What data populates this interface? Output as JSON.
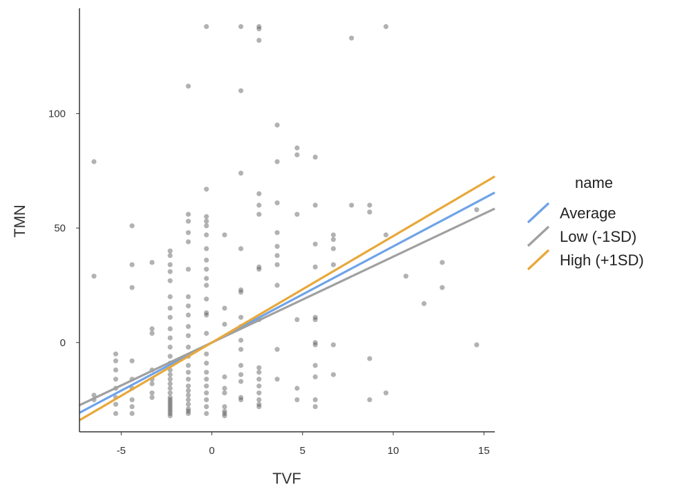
{
  "chart_data": {
    "type": "scatter",
    "title": "",
    "xlabel": "TVF",
    "ylabel": "TMN",
    "xlim": [
      -7.3,
      15.6
    ],
    "ylim": [
      -39,
      146
    ],
    "xticks": [
      -5,
      0,
      5,
      10,
      15
    ],
    "yticks": [
      0,
      50,
      100
    ],
    "xtick_labels": [
      "-5",
      "0",
      "5",
      "10",
      "15"
    ],
    "ytick_labels": [
      "0",
      "50",
      "100"
    ],
    "grid": false,
    "legend": {
      "title": "name",
      "position": "right",
      "entries": [
        {
          "label": "Average",
          "color": "#6FA3E8"
        },
        {
          "label": "Low (-1SD)",
          "color": "#A0A0A0"
        },
        {
          "label": "High (+1SD)",
          "color": "#E8A83A"
        }
      ]
    },
    "lines": [
      {
        "name": "Average",
        "color": "#6FA3E8",
        "intercept": 0,
        "slope": 4.2
      },
      {
        "name": "Low (-1SD)",
        "color": "#A0A0A0",
        "intercept": 0,
        "slope": 3.75
      },
      {
        "name": "High (+1SD)",
        "color": "#E8A83A",
        "intercept": 0,
        "slope": 4.65
      }
    ],
    "points": [
      [
        -6.5,
        79
      ],
      [
        -6.5,
        29
      ],
      [
        -6.5,
        -23
      ],
      [
        -6.5,
        -25
      ],
      [
        -5.3,
        -5
      ],
      [
        -5.3,
        -8
      ],
      [
        -5.3,
        -12
      ],
      [
        -5.3,
        -16
      ],
      [
        -5.3,
        -20
      ],
      [
        -5.3,
        -24
      ],
      [
        -5.3,
        -27
      ],
      [
        -5.3,
        -31
      ],
      [
        -4.4,
        51
      ],
      [
        -4.4,
        34
      ],
      [
        -4.4,
        24
      ],
      [
        -4.4,
        -8
      ],
      [
        -4.4,
        -16
      ],
      [
        -4.4,
        -20
      ],
      [
        -4.4,
        -25
      ],
      [
        -4.4,
        -28
      ],
      [
        -4.4,
        -31
      ],
      [
        -3.3,
        35
      ],
      [
        -3.3,
        6
      ],
      [
        -3.3,
        4
      ],
      [
        -3.3,
        -12
      ],
      [
        -3.3,
        -16
      ],
      [
        -3.3,
        -18
      ],
      [
        -3.3,
        -22
      ],
      [
        -3.3,
        -24
      ],
      [
        -2.3,
        40
      ],
      [
        -2.3,
        38
      ],
      [
        -2.3,
        34
      ],
      [
        -2.3,
        31
      ],
      [
        -2.3,
        27
      ],
      [
        -2.3,
        20
      ],
      [
        -2.3,
        15
      ],
      [
        -2.3,
        11
      ],
      [
        -2.3,
        6
      ],
      [
        -2.3,
        2
      ],
      [
        -2.3,
        -2
      ],
      [
        -2.3,
        -6
      ],
      [
        -2.3,
        -9
      ],
      [
        -2.3,
        -12
      ],
      [
        -2.3,
        -14
      ],
      [
        -2.3,
        -16
      ],
      [
        -2.3,
        -18
      ],
      [
        -2.3,
        -20
      ],
      [
        -2.3,
        -22
      ],
      [
        -2.3,
        -24
      ],
      [
        -2.3,
        -25
      ],
      [
        -2.3,
        -26
      ],
      [
        -2.3,
        -27
      ],
      [
        -2.3,
        -28
      ],
      [
        -2.3,
        -29
      ],
      [
        -2.3,
        -30
      ],
      [
        -2.3,
        -31
      ],
      [
        -2.3,
        -32
      ],
      [
        -1.3,
        112
      ],
      [
        -1.3,
        56
      ],
      [
        -1.3,
        53
      ],
      [
        -1.3,
        48
      ],
      [
        -1.3,
        44
      ],
      [
        -1.3,
        32
      ],
      [
        -1.3,
        20
      ],
      [
        -1.3,
        16
      ],
      [
        -1.3,
        12
      ],
      [
        -1.3,
        7
      ],
      [
        -1.3,
        3
      ],
      [
        -1.3,
        -2
      ],
      [
        -1.3,
        -6
      ],
      [
        -1.3,
        -10
      ],
      [
        -1.3,
        -13
      ],
      [
        -1.3,
        -16
      ],
      [
        -1.3,
        -19
      ],
      [
        -1.3,
        -21
      ],
      [
        -1.3,
        -23
      ],
      [
        -1.3,
        -25
      ],
      [
        -1.3,
        -27
      ],
      [
        -1.3,
        -29
      ],
      [
        -1.3,
        -30
      ],
      [
        -1.3,
        -31
      ],
      [
        -0.3,
        138
      ],
      [
        -0.3,
        67
      ],
      [
        -0.3,
        55
      ],
      [
        -0.3,
        53
      ],
      [
        -0.3,
        51
      ],
      [
        -0.3,
        47
      ],
      [
        -0.3,
        41
      ],
      [
        -0.3,
        36
      ],
      [
        -0.3,
        32
      ],
      [
        -0.3,
        28
      ],
      [
        -0.3,
        25
      ],
      [
        -0.3,
        19
      ],
      [
        -0.3,
        13
      ],
      [
        -0.3,
        12
      ],
      [
        -0.3,
        4
      ],
      [
        -0.3,
        -5
      ],
      [
        -0.3,
        -9
      ],
      [
        -0.3,
        -13
      ],
      [
        -0.3,
        -16
      ],
      [
        -0.3,
        -19
      ],
      [
        -0.3,
        -22
      ],
      [
        -0.3,
        -25
      ],
      [
        -0.3,
        -28
      ],
      [
        -0.3,
        -31
      ],
      [
        0.7,
        47
      ],
      [
        0.7,
        15
      ],
      [
        0.7,
        8
      ],
      [
        0.7,
        -15
      ],
      [
        0.7,
        -20
      ],
      [
        0.7,
        -22
      ],
      [
        0.7,
        -28
      ],
      [
        0.7,
        -30
      ],
      [
        0.7,
        -31
      ],
      [
        0.7,
        -32
      ],
      [
        1.6,
        138
      ],
      [
        1.6,
        110
      ],
      [
        1.6,
        74
      ],
      [
        1.6,
        41
      ],
      [
        1.6,
        23
      ],
      [
        1.6,
        22
      ],
      [
        1.6,
        11
      ],
      [
        1.6,
        7
      ],
      [
        1.6,
        1
      ],
      [
        1.6,
        -3
      ],
      [
        1.6,
        -10
      ],
      [
        1.6,
        -14
      ],
      [
        1.6,
        -17
      ],
      [
        1.6,
        -24
      ],
      [
        1.6,
        -25
      ],
      [
        2.6,
        138
      ],
      [
        2.6,
        137
      ],
      [
        2.6,
        132
      ],
      [
        2.6,
        65
      ],
      [
        2.6,
        60
      ],
      [
        2.6,
        56
      ],
      [
        2.6,
        33
      ],
      [
        2.6,
        32
      ],
      [
        2.6,
        10
      ],
      [
        2.6,
        -11
      ],
      [
        2.6,
        -13
      ],
      [
        2.6,
        -16
      ],
      [
        2.6,
        -19
      ],
      [
        2.6,
        -22
      ],
      [
        2.6,
        -25
      ],
      [
        2.6,
        -27
      ],
      [
        2.6,
        -28
      ],
      [
        3.6,
        95
      ],
      [
        3.6,
        79
      ],
      [
        3.6,
        61
      ],
      [
        3.6,
        48
      ],
      [
        3.6,
        42
      ],
      [
        3.6,
        38
      ],
      [
        3.6,
        34
      ],
      [
        3.6,
        25
      ],
      [
        3.6,
        -3
      ],
      [
        3.6,
        -16
      ],
      [
        4.7,
        85
      ],
      [
        4.7,
        82
      ],
      [
        4.7,
        56
      ],
      [
        4.7,
        10
      ],
      [
        4.7,
        -20
      ],
      [
        4.7,
        -25
      ],
      [
        5.7,
        81
      ],
      [
        5.7,
        60
      ],
      [
        5.7,
        43
      ],
      [
        5.7,
        33
      ],
      [
        5.7,
        11
      ],
      [
        5.7,
        10
      ],
      [
        5.7,
        0
      ],
      [
        5.7,
        -1
      ],
      [
        5.7,
        -10
      ],
      [
        5.7,
        -15
      ],
      [
        5.7,
        -25
      ],
      [
        5.7,
        -28
      ],
      [
        6.7,
        47
      ],
      [
        6.7,
        45
      ],
      [
        6.7,
        41
      ],
      [
        6.7,
        34
      ],
      [
        6.7,
        -1
      ],
      [
        6.7,
        -14
      ],
      [
        7.7,
        133
      ],
      [
        7.7,
        60
      ],
      [
        8.7,
        60
      ],
      [
        8.7,
        57
      ],
      [
        8.7,
        -7
      ],
      [
        8.7,
        -25
      ],
      [
        9.6,
        138
      ],
      [
        9.6,
        47
      ],
      [
        9.6,
        -22
      ],
      [
        10.7,
        29
      ],
      [
        11.7,
        17
      ],
      [
        12.7,
        35
      ],
      [
        12.7,
        24
      ],
      [
        14.6,
        58
      ],
      [
        14.6,
        -1
      ]
    ]
  }
}
